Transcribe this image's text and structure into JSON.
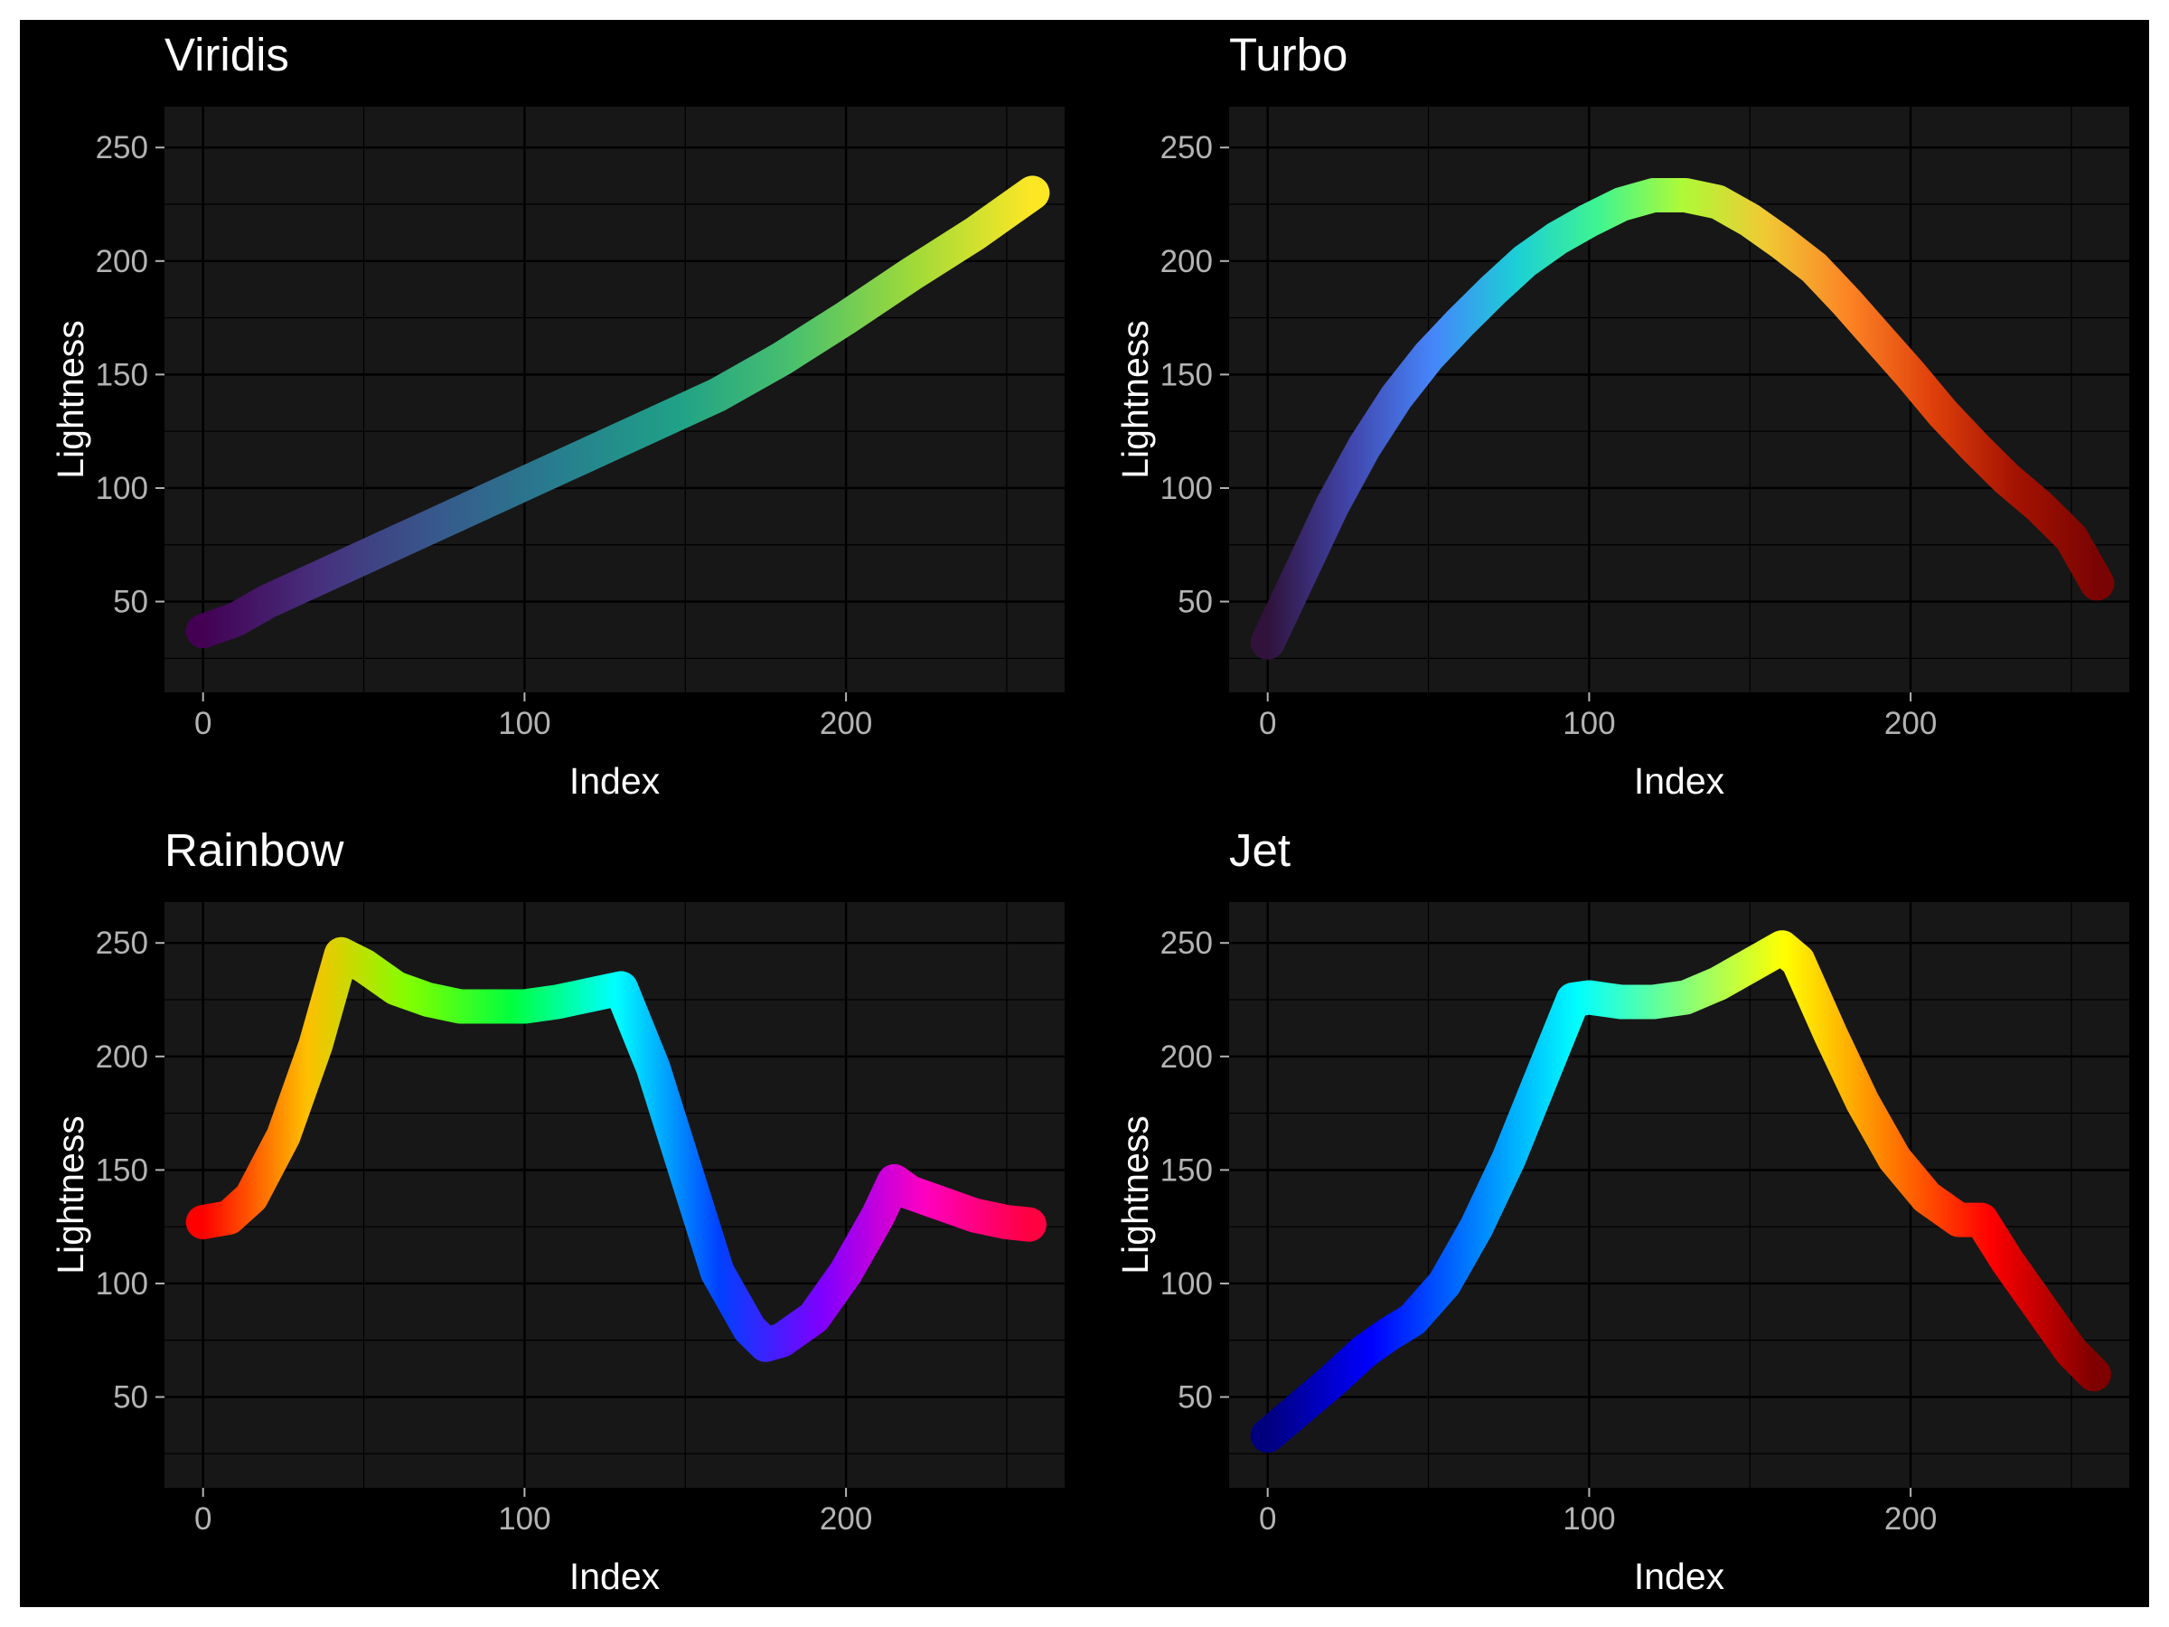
{
  "chart_data": [
    {
      "type": "line",
      "title": "Viridis",
      "xlabel": "Index",
      "ylabel": "Lightness",
      "xlim": [
        -12,
        268
      ],
      "ylim": [
        10,
        268
      ],
      "x_ticks": [
        0,
        100,
        200
      ],
      "y_ticks": [
        50,
        100,
        150,
        200,
        250
      ],
      "grid": true,
      "series": [
        {
          "points": [
            [
              0,
              37
            ],
            [
              10,
              42
            ],
            [
              20,
              50
            ],
            [
              40,
              63
            ],
            [
              60,
              76
            ],
            [
              80,
              89
            ],
            [
              100,
              102
            ],
            [
              120,
              115
            ],
            [
              140,
              128
            ],
            [
              160,
              141
            ],
            [
              180,
              157
            ],
            [
              200,
              175
            ],
            [
              220,
              194
            ],
            [
              240,
              212
            ],
            [
              258,
              230
            ]
          ],
          "colors": [
            "#440154",
            "#46317e",
            "#365a8c",
            "#277e8e",
            "#1fa187",
            "#4ac16d",
            "#a0da39",
            "#fde725"
          ]
        }
      ]
    },
    {
      "type": "line",
      "title": "Turbo",
      "xlabel": "Index",
      "ylabel": "Lightness",
      "xlim": [
        -12,
        268
      ],
      "ylim": [
        10,
        268
      ],
      "x_ticks": [
        0,
        100,
        200
      ],
      "y_ticks": [
        50,
        100,
        150,
        200,
        250
      ],
      "grid": true,
      "series": [
        {
          "points": [
            [
              0,
              32
            ],
            [
              10,
              62
            ],
            [
              20,
              92
            ],
            [
              30,
              118
            ],
            [
              40,
              140
            ],
            [
              50,
              158
            ],
            [
              60,
              173
            ],
            [
              70,
              187
            ],
            [
              80,
              200
            ],
            [
              90,
              210
            ],
            [
              100,
              218
            ],
            [
              110,
              225
            ],
            [
              120,
              229
            ],
            [
              130,
              229
            ],
            [
              140,
              226
            ],
            [
              150,
              218
            ],
            [
              160,
              208
            ],
            [
              170,
              197
            ],
            [
              180,
              182
            ],
            [
              190,
              166
            ],
            [
              200,
              150
            ],
            [
              210,
              133
            ],
            [
              220,
              118
            ],
            [
              230,
              104
            ],
            [
              240,
              92
            ],
            [
              250,
              78
            ],
            [
              258,
              58
            ]
          ],
          "colors": [
            "#30123b",
            "#4146ac",
            "#4686fb",
            "#1ccfd6",
            "#40f58f",
            "#aefa37",
            "#f0c934",
            "#fc8425",
            "#e0410b",
            "#a51301",
            "#7a0403"
          ]
        }
      ]
    },
    {
      "type": "line",
      "title": "Rainbow",
      "xlabel": "Index",
      "ylabel": "Lightness",
      "xlim": [
        -12,
        268
      ],
      "ylim": [
        10,
        268
      ],
      "x_ticks": [
        0,
        100,
        200
      ],
      "y_ticks": [
        50,
        100,
        150,
        200,
        250
      ],
      "grid": true,
      "series": [
        {
          "points": [
            [
              0,
              127
            ],
            [
              8,
              129
            ],
            [
              15,
              138
            ],
            [
              25,
              165
            ],
            [
              35,
              205
            ],
            [
              43,
              245
            ],
            [
              50,
              240
            ],
            [
              60,
              230
            ],
            [
              70,
              225
            ],
            [
              80,
              222
            ],
            [
              90,
              222
            ],
            [
              100,
              222
            ],
            [
              110,
              224
            ],
            [
              120,
              227
            ],
            [
              130,
              230
            ],
            [
              140,
              195
            ],
            [
              150,
              150
            ],
            [
              160,
              105
            ],
            [
              170,
              80
            ],
            [
              175,
              73
            ],
            [
              180,
              75
            ],
            [
              190,
              85
            ],
            [
              200,
              105
            ],
            [
              210,
              130
            ],
            [
              215,
              145
            ],
            [
              220,
              140
            ],
            [
              230,
              135
            ],
            [
              240,
              130
            ],
            [
              250,
              127
            ],
            [
              257,
              126
            ]
          ],
          "colors": [
            "#ff0000",
            "#ffbf00",
            "#80ff00",
            "#00ff40",
            "#00ffff",
            "#0040ff",
            "#8000ff",
            "#ff00bf",
            "#ff0040"
          ]
        }
      ]
    },
    {
      "type": "line",
      "title": "Jet",
      "xlabel": "Index",
      "ylabel": "Lightness",
      "xlim": [
        -12,
        268
      ],
      "ylim": [
        10,
        268
      ],
      "x_ticks": [
        0,
        100,
        200
      ],
      "y_ticks": [
        50,
        100,
        150,
        200,
        250
      ],
      "grid": true,
      "series": [
        {
          "points": [
            [
              0,
              33
            ],
            [
              10,
              45
            ],
            [
              20,
              57
            ],
            [
              30,
              70
            ],
            [
              38,
              78
            ],
            [
              45,
              84
            ],
            [
              55,
              100
            ],
            [
              65,
              125
            ],
            [
              75,
              155
            ],
            [
              85,
              190
            ],
            [
              95,
              225
            ],
            [
              100,
              226
            ],
            [
              110,
              224
            ],
            [
              120,
              224
            ],
            [
              130,
              226
            ],
            [
              140,
              232
            ],
            [
              150,
              240
            ],
            [
              160,
              248
            ],
            [
              165,
              242
            ],
            [
              175,
              210
            ],
            [
              185,
              180
            ],
            [
              195,
              155
            ],
            [
              205,
              138
            ],
            [
              215,
              128
            ],
            [
              222,
              128
            ],
            [
              230,
              110
            ],
            [
              240,
              90
            ],
            [
              250,
              70
            ],
            [
              257,
              60
            ]
          ],
          "colors": [
            "#00007f",
            "#0000ff",
            "#007fff",
            "#00ffff",
            "#7fff7f",
            "#ffff00",
            "#ff7f00",
            "#ff0000",
            "#7f0000"
          ]
        }
      ]
    }
  ]
}
